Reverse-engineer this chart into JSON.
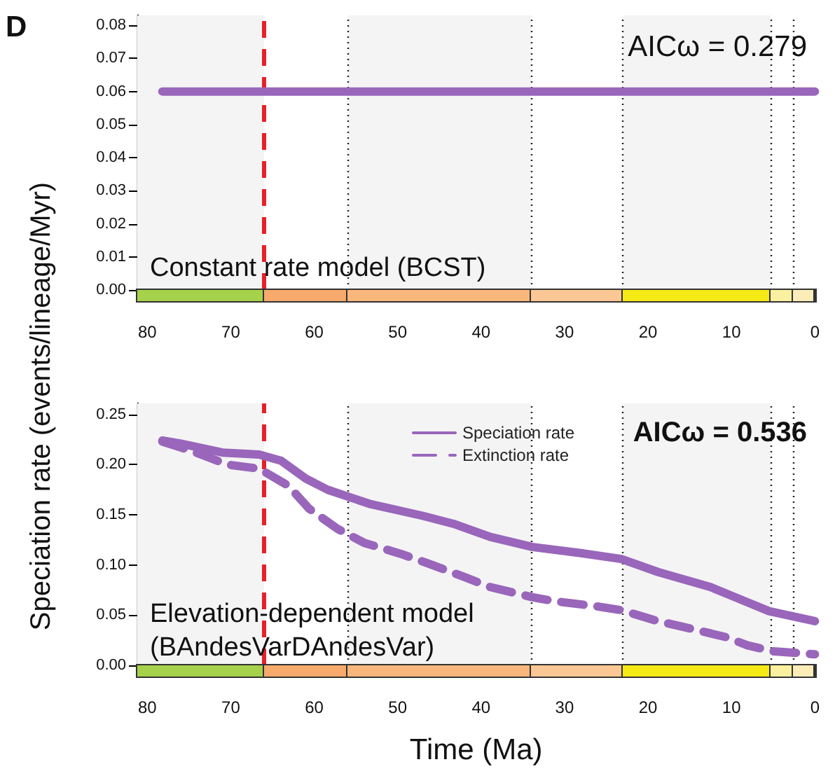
{
  "chart_data": [
    {
      "type": "line",
      "annotations": [
        "D",
        "AICω = 0.279",
        "Constant rate model (BCST)"
      ],
      "xlim": [
        81.2,
        0
      ],
      "xticks": [
        80,
        70,
        60,
        50,
        40,
        30,
        20,
        10,
        0
      ],
      "ylim": [
        0,
        0.083
      ],
      "yticks": [
        {
          "value": 0,
          "label": "0.00"
        },
        0.01,
        0.02,
        0.03,
        0.04,
        0.05,
        0.06,
        0.07,
        0.08
      ],
      "series": [
        {
          "color": "#9966bb",
          "line_style": "solid",
          "x": [
            78.2,
            0
          ],
          "values": [
            0.06,
            0.06
          ]
        }
      ],
      "ref_lines": [
        {
          "axis": "x",
          "value": 66,
          "color": "#e8202a",
          "line_style": "dashed"
        },
        {
          "axis": "x",
          "value": 56,
          "color": "#222222",
          "line_style": "dotted"
        },
        {
          "axis": "x",
          "value": 34,
          "color": "#222222",
          "line_style": "dotted"
        },
        {
          "axis": "x",
          "value": 23,
          "color": "#222222",
          "line_style": "dotted"
        },
        {
          "axis": "x",
          "value": 5.3,
          "color": "#222222",
          "line_style": "dotted"
        },
        {
          "axis": "x",
          "value": 2.6,
          "color": "#222222",
          "line_style": "dotted"
        }
      ],
      "bands": [
        {
          "axis": "x",
          "from": 81.2,
          "to": 66,
          "color": "#f4f4f4"
        },
        {
          "axis": "x",
          "from": 56,
          "to": 34,
          "color": "#f4f4f4"
        },
        {
          "axis": "x",
          "from": 23,
          "to": 5.3,
          "color": "#f4f4f4"
        }
      ],
      "grid": false,
      "legend": false
    },
    {
      "type": "line",
      "annotations": [
        "AICω = 0.536",
        "Elevation-dependent model",
        "(BAndesVarDAndesVar)"
      ],
      "xlabel": "Time (Ma)",
      "ylabel": "Speciation rate (events/lineage/Myr)",
      "xlim": [
        81.2,
        0
      ],
      "xticks": [
        80,
        70,
        60,
        50,
        40,
        30,
        20,
        10,
        0
      ],
      "ylim": [
        0,
        0.261
      ],
      "yticks": [
        {
          "value": 0,
          "label": "0.00"
        },
        0.05,
        {
          "value": 0.1,
          "label": "0.10"
        },
        0.15,
        {
          "value": 0.2,
          "label": "0.20"
        },
        0.25
      ],
      "series": [
        {
          "name": "Speciation rate",
          "color": "#9966bb",
          "line_style": "solid",
          "x": [
            78.2,
            76,
            71,
            66.6,
            64,
            61,
            58.4,
            53.4,
            47,
            43.3,
            38.9,
            33.9,
            28.2,
            23.2,
            18.8,
            12.5,
            9.3,
            5.5,
            0
          ],
          "values": [
            0.224,
            0.221,
            0.212,
            0.21,
            0.204,
            0.186,
            0.175,
            0.161,
            0.149,
            0.141,
            0.128,
            0.118,
            0.112,
            0.106,
            0.093,
            0.078,
            0.067,
            0.054,
            0.044
          ]
        },
        {
          "name": "Extinction rate",
          "color": "#9966bb",
          "line_style": "dashed",
          "x": [
            78.2,
            74.8,
            70.4,
            66.6,
            63.1,
            60.6,
            57.2,
            54,
            49.6,
            46.5,
            42,
            38.9,
            33.9,
            31.3,
            26.3,
            23.2,
            18.8,
            15.6,
            10.6,
            8.1,
            5,
            0
          ],
          "values": [
            0.223,
            0.214,
            0.2,
            0.196,
            0.179,
            0.156,
            0.136,
            0.122,
            0.111,
            0.102,
            0.088,
            0.078,
            0.068,
            0.064,
            0.059,
            0.055,
            0.044,
            0.038,
            0.028,
            0.02,
            0.014,
            0.011
          ]
        }
      ],
      "ref_lines": [
        {
          "axis": "x",
          "value": 66,
          "color": "#e8202a",
          "line_style": "dashed"
        },
        {
          "axis": "x",
          "value": 56,
          "color": "#222222",
          "line_style": "dotted"
        },
        {
          "axis": "x",
          "value": 34,
          "color": "#222222",
          "line_style": "dotted"
        },
        {
          "axis": "x",
          "value": 23,
          "color": "#222222",
          "line_style": "dotted"
        },
        {
          "axis": "x",
          "value": 5.3,
          "color": "#222222",
          "line_style": "dotted"
        },
        {
          "axis": "x",
          "value": 2.6,
          "color": "#222222",
          "line_style": "dotted"
        }
      ],
      "bands": [
        {
          "axis": "x",
          "from": 81.2,
          "to": 66,
          "color": "#f4f4f4"
        },
        {
          "axis": "x",
          "from": 56,
          "to": 34,
          "color": "#f4f4f4"
        },
        {
          "axis": "x",
          "from": 23,
          "to": 5.3,
          "color": "#f4f4f4"
        }
      ],
      "grid": false,
      "legend": "top"
    }
  ]
}
